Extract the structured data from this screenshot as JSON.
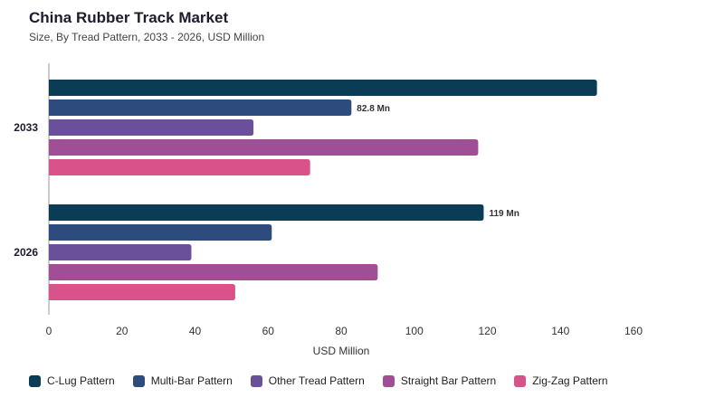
{
  "title": "China Rubber Track Market",
  "subtitle": "Size, By Tread Pattern, 2033 - 2026, USD Million",
  "chart_data": {
    "type": "bar",
    "orientation": "horizontal",
    "categories": [
      "2033",
      "2026"
    ],
    "xlabel": "USD Million",
    "ylabel": "",
    "xlim": [
      0,
      160
    ],
    "xticks": [
      0,
      20,
      40,
      60,
      80,
      100,
      120,
      140,
      160
    ],
    "grid": false,
    "legend_position": "bottom",
    "series": [
      {
        "name": "C-Lug Pattern",
        "color": "#0a3d55",
        "values": [
          150,
          119
        ],
        "labels": [
          "",
          "119 Mn"
        ]
      },
      {
        "name": "Multi-Bar Pattern",
        "color": "#2e4b7d",
        "values": [
          82.8,
          61
        ],
        "labels": [
          "82.8 Mn",
          ""
        ]
      },
      {
        "name": "Other Tread Pattern",
        "color": "#6a4f9a",
        "values": [
          56,
          39
        ],
        "labels": [
          "",
          ""
        ]
      },
      {
        "name": "Straight Bar Pattern",
        "color": "#a04f97",
        "values": [
          117.5,
          90
        ],
        "labels": [
          "",
          ""
        ]
      },
      {
        "name": "Zig-Zag Pattern",
        "color": "#d9528a",
        "values": [
          71.5,
          51
        ],
        "labels": [
          "",
          ""
        ]
      }
    ]
  }
}
